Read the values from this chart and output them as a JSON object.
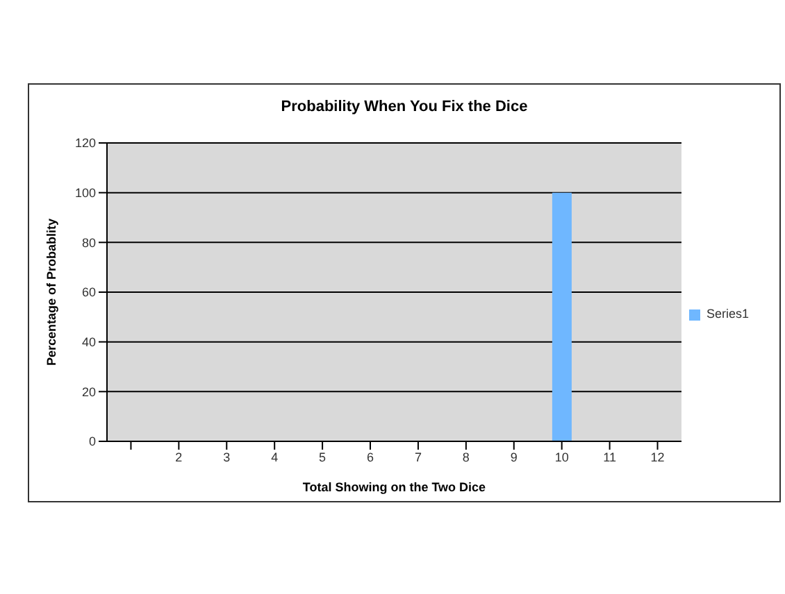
{
  "chart_data": {
    "type": "bar",
    "title": "Probability When You Fix the Dice",
    "xlabel": "Total Showing on the Two Dice",
    "ylabel": "Percentage of Probablity",
    "categories": [
      null,
      "2",
      "3",
      "4",
      "5",
      "6",
      "7",
      "8",
      "9",
      "10",
      "11",
      "12"
    ],
    "series": [
      {
        "name": "Series1",
        "color": "#6fb7ff",
        "values": [
          null,
          0,
          0,
          0,
          0,
          0,
          0,
          0,
          0,
          100,
          0,
          0
        ]
      }
    ],
    "ylim": [
      0,
      120
    ],
    "yticks": [
      0,
      20,
      40,
      60,
      80,
      100,
      120
    ],
    "grid": "y",
    "legend": "right"
  }
}
